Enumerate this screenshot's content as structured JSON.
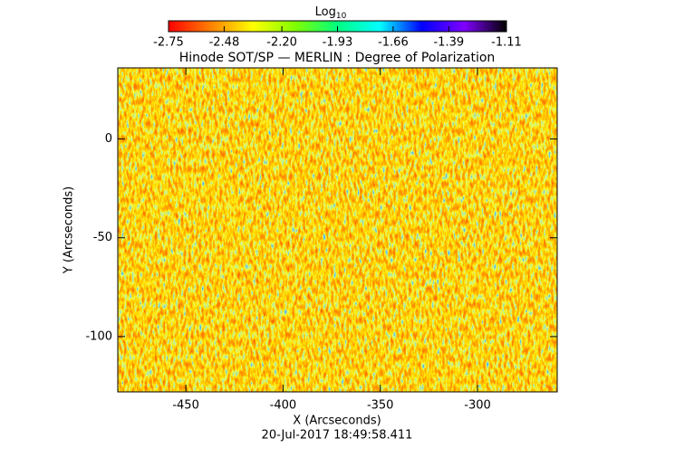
{
  "chart_data": {
    "type": "heatmap",
    "title": "Hinode SOT/SP — MERLIN : Degree of Polarization",
    "x_label": "X (Arcseconds)",
    "y_label": "Y (Arcseconds)",
    "footer": "20-Jul-2017 18:49:58.411",
    "colorbar_label": "Log",
    "colorbar_label_sub": "10",
    "clim": [
      -2.75,
      -1.11
    ],
    "cticks": [
      -2.75,
      -2.48,
      {
        "value": -2.2,
        "label": "-2.20"
      },
      -1.93,
      -1.66,
      -1.39,
      -1.11
    ],
    "colors": [
      "#ff0000",
      "#ff8000",
      "#ffff00",
      "#80ff00",
      "#00ff80",
      "#00ffff",
      "#0000ff",
      "#8000ff",
      "#000000"
    ],
    "xlim": [
      -485,
      -259
    ],
    "ylim": [
      -128,
      36
    ],
    "xticks": [
      -450,
      -400,
      -350,
      -300
    ],
    "yticks": [
      -100,
      -50,
      0
    ]
  }
}
